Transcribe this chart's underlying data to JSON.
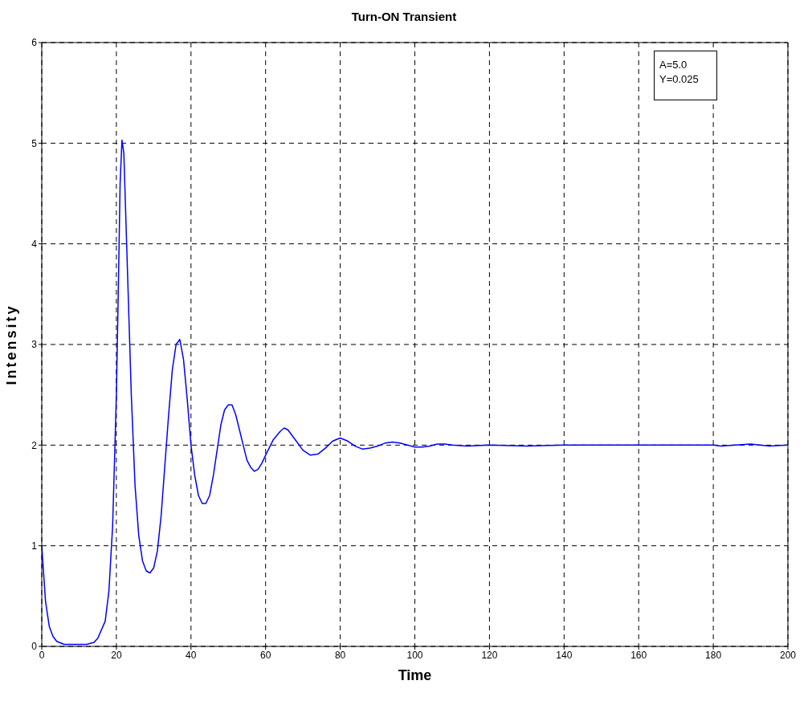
{
  "chart_data": {
    "type": "line",
    "title": "Turn-ON Transient",
    "xlabel": "Time",
    "ylabel": "Intensity",
    "annotations": [
      "A=5.0",
      "Y=0.025"
    ],
    "xlim": [
      0,
      200
    ],
    "xticks": [
      0,
      20,
      40,
      60,
      80,
      100,
      120,
      140,
      160,
      180,
      200
    ],
    "ylim": [
      0,
      6
    ],
    "yticks": [
      0,
      1,
      2,
      3,
      4,
      5,
      6
    ],
    "grid": true,
    "legend": false,
    "marker": "none",
    "line_style": "solid",
    "x": [
      0,
      1,
      2,
      3,
      4,
      6,
      8,
      12,
      14,
      15,
      17,
      18,
      19,
      20,
      20.5,
      21,
      21.5,
      22,
      23,
      24,
      25,
      26,
      27,
      28,
      29,
      30,
      31,
      32,
      33,
      34,
      35,
      36,
      37,
      38,
      39,
      40,
      41,
      42,
      43,
      44,
      45,
      46,
      47,
      48,
      49,
      50,
      51,
      52,
      53,
      54,
      55,
      56,
      57,
      58,
      59,
      60,
      62,
      64,
      65,
      66,
      68,
      70,
      72,
      74,
      76,
      78,
      80,
      82,
      84,
      86,
      88,
      90,
      92,
      94,
      96,
      98,
      100,
      102,
      104,
      106,
      108,
      110,
      114,
      120,
      130,
      140,
      160,
      180,
      182,
      190,
      195,
      200
    ],
    "series": [
      {
        "color": "#0000ff",
        "values": [
          1.0,
          0.45,
          0.2,
          0.1,
          0.05,
          0.02,
          0.02,
          0.02,
          0.04,
          0.08,
          0.25,
          0.55,
          1.2,
          2.5,
          3.5,
          4.6,
          5.03,
          4.9,
          3.7,
          2.5,
          1.6,
          1.1,
          0.85,
          0.75,
          0.73,
          0.78,
          0.95,
          1.3,
          1.8,
          2.3,
          2.75,
          3.0,
          3.05,
          2.85,
          2.45,
          2.0,
          1.7,
          1.5,
          1.42,
          1.42,
          1.5,
          1.7,
          1.95,
          2.2,
          2.35,
          2.4,
          2.4,
          2.3,
          2.15,
          2.0,
          1.85,
          1.78,
          1.74,
          1.76,
          1.82,
          1.9,
          2.05,
          2.14,
          2.17,
          2.15,
          2.05,
          1.95,
          1.9,
          1.91,
          1.97,
          2.04,
          2.07,
          2.04,
          1.99,
          1.96,
          1.97,
          1.99,
          2.02,
          2.03,
          2.02,
          2.0,
          1.98,
          1.98,
          1.99,
          2.01,
          2.01,
          2.0,
          1.99,
          2.0,
          1.99,
          2.0,
          2.0,
          2.0,
          1.99,
          2.01,
          1.99,
          2.0
        ]
      }
    ]
  }
}
